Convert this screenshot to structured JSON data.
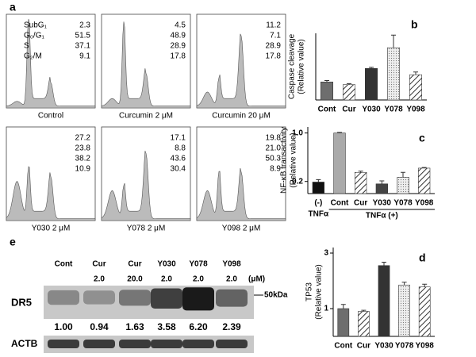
{
  "flow": {
    "letter": "a",
    "phase_labels": [
      "SubG₁",
      "G₀/G₁",
      "S",
      "G₂/M"
    ],
    "panels": [
      {
        "label": "Control",
        "values": [
          "2.3",
          "51.5",
          "37.1",
          "9.1"
        ]
      },
      {
        "label": "Curcumin 2 μM",
        "values": [
          "4.5",
          "48.9",
          "28.9",
          "17.8"
        ]
      },
      {
        "label": "Curcumin 20 μM",
        "values": [
          "11.2",
          "7.1",
          "28.9",
          "17.8"
        ]
      },
      {
        "label": "Y030 2 μM",
        "values": [
          "27.2",
          "23.8",
          "38.2",
          "10.9"
        ]
      },
      {
        "label": "Y078 2 μM",
        "values": [
          "17.1",
          "8.8",
          "43.6",
          "30.4"
        ]
      },
      {
        "label": "Y098 2 μM",
        "values": [
          "19.8",
          "21.0",
          "50.3",
          "8.9"
        ]
      }
    ]
  },
  "blot": {
    "letter": "e",
    "lanes": [
      "Cont",
      "Cur",
      "Cur",
      "Y030",
      "Y078",
      "Y098"
    ],
    "doses": [
      null,
      "2.0",
      "20.0",
      "2.0",
      "2.0",
      "2.0"
    ],
    "dose_unit": "(μM)",
    "rows": [
      "DR5",
      "ACTB"
    ],
    "marker": "50kDa",
    "ratios": [
      "1.00",
      "0.94",
      "1.63",
      "3.58",
      "6.20",
      "2.39"
    ]
  },
  "chart_data": [
    {
      "type": "bar",
      "panel": "b",
      "y_label": [
        "Caspase cleavage",
        "(Relative value)"
      ],
      "categories": [
        "Cont",
        "Cur",
        "Y030",
        "Y078",
        "Y098"
      ],
      "values": [
        1.0,
        0.85,
        1.75,
        2.9,
        1.4
      ],
      "errors": [
        0.08,
        0.06,
        0.06,
        0.7,
        0.15
      ],
      "fills": [
        "#6e6e6e",
        "hatch",
        "#333333",
        "dots",
        "hatch"
      ],
      "ylim": [
        0,
        3.7
      ],
      "yticks": []
    },
    {
      "type": "bar",
      "panel": "c",
      "y_label": [
        "NF-κB transactivity",
        "(Relative value)"
      ],
      "categories": [
        "(-)",
        "Cont",
        "Cur",
        "Y030",
        "Y078",
        "Y098"
      ],
      "group_labels": [
        "TNFα",
        "TNFα (+)"
      ],
      "values": [
        0.19,
        1.0,
        0.35,
        0.16,
        0.27,
        0.42
      ],
      "errors": [
        0.04,
        0.01,
        0.02,
        0.05,
        0.08,
        0.01
      ],
      "fills": [
        "#111111",
        "#aaaaaa",
        "hatch",
        "#444444",
        "dots",
        "hatch"
      ],
      "ylim": [
        0,
        1.1
      ],
      "yticks": [
        0.2,
        {
          "value": 1,
          "label": "1.0"
        }
      ]
    },
    {
      "type": "bar",
      "panel": "d",
      "y_label": [
        "TP53",
        "(Relative value)"
      ],
      "categories": [
        "Cont",
        "Cur",
        "Y030",
        "Y078",
        "Y098"
      ],
      "values": [
        1.0,
        0.9,
        2.55,
        1.85,
        1.78
      ],
      "errors": [
        0.15,
        0.04,
        0.12,
        0.1,
        0.1
      ],
      "fills": [
        "#6e6e6e",
        "hatch",
        "#333333",
        "dots",
        "hatch"
      ],
      "ylim": [
        0,
        3.2
      ],
      "yticks": [
        1,
        3
      ]
    }
  ]
}
